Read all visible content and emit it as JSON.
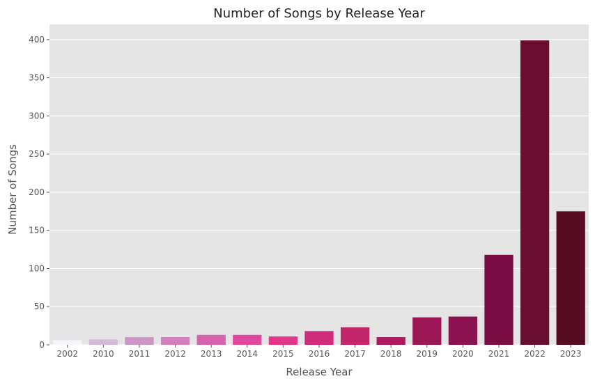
{
  "chart_data": {
    "type": "bar",
    "title": "Number of Songs by Release Year",
    "xlabel": "Release Year",
    "ylabel": "Number of Songs",
    "categories": [
      "2002",
      "2010",
      "2011",
      "2012",
      "2013",
      "2014",
      "2015",
      "2016",
      "2017",
      "2018",
      "2019",
      "2020",
      "2021",
      "2022",
      "2023"
    ],
    "values": [
      6,
      7,
      10,
      10,
      13,
      13,
      11,
      18,
      23,
      10,
      36,
      37,
      118,
      399,
      175
    ],
    "colors": [
      "#f7f4f9",
      "#d4b9da",
      "#cc97c6",
      "#d47fbc",
      "#d663ad",
      "#dd4b9f",
      "#e0368b",
      "#cf2d7b",
      "#c02669",
      "#ae1a5f",
      "#9c1656",
      "#8c1150",
      "#7b0d45",
      "#690d31",
      "#580c24"
    ],
    "ylim": [
      0,
      420
    ],
    "yticks": [
      0,
      50,
      100,
      150,
      200,
      250,
      300,
      350,
      400
    ],
    "grid": true,
    "background": "#e5e5e5"
  }
}
